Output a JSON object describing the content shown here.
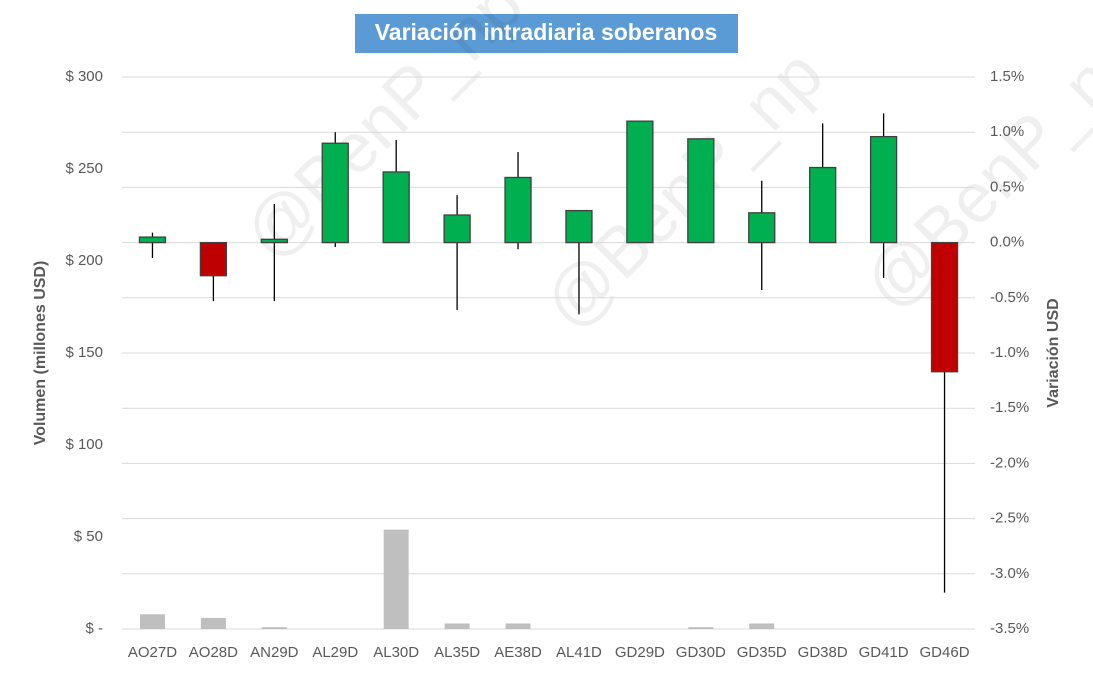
{
  "chart_data": {
    "type": "candlestick",
    "title": "Variación intradiaria soberanos",
    "y_label": "Volumen (millones USD)",
    "y2_label": "Variación USD",
    "watermark": "@BenP_np",
    "categories": [
      "AO27D",
      "AO28D",
      "AN29D",
      "AL29D",
      "AL30D",
      "AL35D",
      "AE38D",
      "AL41D",
      "GD29D",
      "GD30D",
      "GD35D",
      "GD38D",
      "GD41D",
      "GD46D"
    ],
    "open": [
      0,
      0,
      0,
      0,
      0,
      0,
      0,
      0,
      0,
      0,
      0,
      0,
      0,
      0
    ],
    "close": [
      0.05,
      -0.3,
      0.03,
      0.9,
      0.64,
      0.25,
      0.59,
      0.29,
      1.1,
      0.94,
      0.27,
      0.68,
      0.96,
      -1.17
    ],
    "high": [
      0.09,
      0,
      0.35,
      1.0,
      0.93,
      0.43,
      0.82,
      0.29,
      1.1,
      0.94,
      0.56,
      1.08,
      1.17,
      0
    ],
    "low": [
      -0.14,
      -0.53,
      -0.53,
      -0.04,
      0,
      -0.61,
      -0.06,
      -0.65,
      0,
      0,
      -0.43,
      0,
      -0.32,
      -3.17
    ],
    "up_color": "#00b050",
    "down_color": "#c00000",
    "volume": {
      "values": [
        8,
        6,
        1,
        0,
        54,
        3,
        3,
        0,
        0,
        1,
        3,
        0,
        0,
        0
      ],
      "color": "#bfbfbf"
    },
    "ylim": [
      0,
      300
    ],
    "yticks": [
      {
        "value": 0,
        "label": "$ -"
      },
      {
        "value": 50,
        "label": "$ 50"
      },
      {
        "value": 100,
        "label": "$ 100"
      },
      {
        "value": 150,
        "label": "$ 150"
      },
      {
        "value": 200,
        "label": "$ 200"
      },
      {
        "value": 250,
        "label": "$ 250"
      },
      {
        "value": 300,
        "label": "$ 300"
      }
    ],
    "y2lim": [
      -3.5,
      1.5
    ],
    "y2ticks": [
      {
        "value": 1.5,
        "label": "1.5%"
      },
      {
        "value": 1.0,
        "label": "1.0%"
      },
      {
        "value": 0.5,
        "label": "0.5%"
      },
      {
        "value": 0,
        "label": "0.0%"
      },
      {
        "value": -0.5,
        "label": "-0.5%"
      },
      {
        "value": -1.0,
        "label": "-1.0%"
      },
      {
        "value": -1.5,
        "label": "-1.5%"
      },
      {
        "value": -2.0,
        "label": "-2.0%"
      },
      {
        "value": -2.5,
        "label": "-2.5%"
      },
      {
        "value": -3.0,
        "label": "-3.0%"
      },
      {
        "value": -3.5,
        "label": "-3.5%"
      }
    ],
    "grid": true
  }
}
